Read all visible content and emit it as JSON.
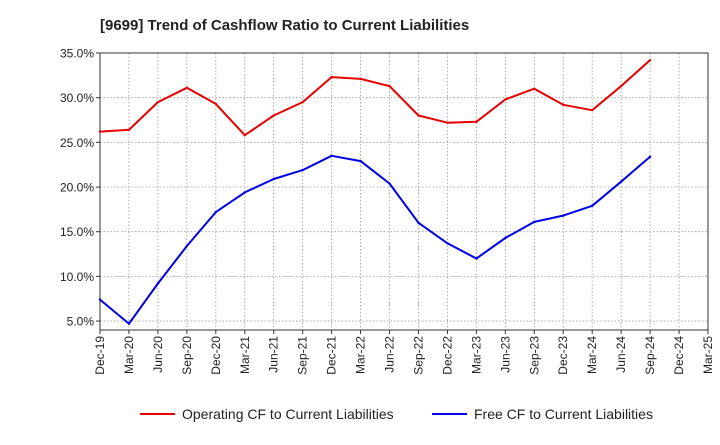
{
  "chart_data": {
    "type": "line",
    "title": "[9699]  Trend of Cashflow Ratio to Current Liabilities",
    "xlabel": "",
    "ylabel": "",
    "x": [
      "Dec-19",
      "Mar-20",
      "Jun-20",
      "Sep-20",
      "Dec-20",
      "Mar-21",
      "Jun-21",
      "Sep-21",
      "Dec-21",
      "Mar-22",
      "Jun-22",
      "Sep-22",
      "Dec-22",
      "Mar-23",
      "Jun-23",
      "Sep-23",
      "Dec-23",
      "Mar-24",
      "Jun-24",
      "Sep-24",
      "Dec-24",
      "Mar-25"
    ],
    "ylim": [
      4.0,
      35.0
    ],
    "y_ticks": [
      5.0,
      10.0,
      15.0,
      20.0,
      25.0,
      30.0,
      35.0
    ],
    "y_tick_labels": [
      "5.0%",
      "10.0%",
      "15.0%",
      "20.0%",
      "25.0%",
      "30.0%",
      "35.0%"
    ],
    "grid": true,
    "legend_position": "bottom",
    "series": [
      {
        "name": "Operating CF to Current Liabilities",
        "color": "#e60000",
        "values": [
          26.2,
          26.4,
          29.5,
          31.1,
          29.3,
          25.8,
          28.0,
          29.5,
          32.3,
          32.1,
          31.3,
          28.0,
          27.2,
          27.3,
          29.8,
          31.0,
          29.2,
          28.6,
          31.3,
          34.2,
          null,
          null
        ]
      },
      {
        "name": "Free CF to Current Liabilities",
        "color": "#0000e6",
        "values": [
          7.4,
          4.7,
          9.2,
          13.4,
          17.2,
          19.4,
          20.9,
          21.9,
          23.5,
          22.9,
          20.4,
          16.0,
          13.7,
          12.0,
          14.3,
          16.1,
          16.8,
          17.9,
          20.6,
          23.4,
          null,
          null
        ]
      }
    ]
  }
}
